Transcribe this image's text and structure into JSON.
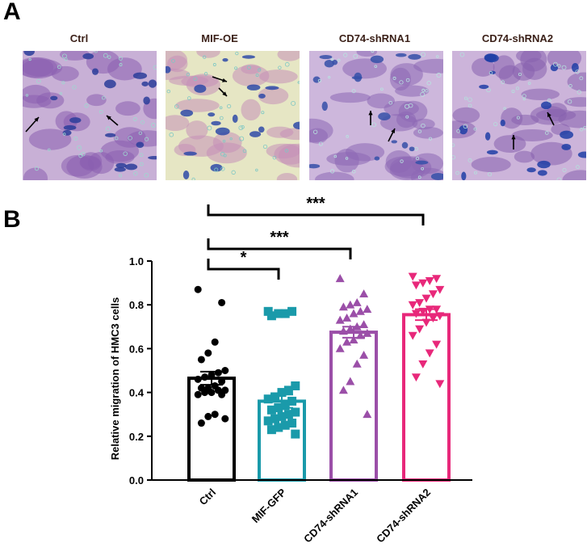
{
  "figure": {
    "panel_a_label": "A",
    "panel_b_label": "B",
    "images": [
      {
        "title": "Ctrl",
        "bg": "#c8b0d6",
        "cell": "#8a5fb0",
        "nucleus": "#2a3d9a",
        "speck": "#9ed8d0"
      },
      {
        "title": "MIF-OE",
        "bg": "#e6e6c4",
        "cell": "#c48fb8",
        "nucleus": "#2e4aa8",
        "speck": "#7ec8c4"
      },
      {
        "title": "CD74-shRNA1",
        "bg": "#cdb7dc",
        "cell": "#8c68b4",
        "nucleus": "#3550a8",
        "speck": "#b8e4e0"
      },
      {
        "title": "CD74-shRNA2",
        "bg": "#ccb4da",
        "cell": "#8660ae",
        "nucleus": "#1e3ea6",
        "speck": "#b4e0dc"
      }
    ]
  },
  "chart_data": {
    "type": "bar",
    "ylabel": "Relative migration of HMC3 cells",
    "ylim": [
      0.0,
      1.0
    ],
    "yticks": [
      0.0,
      0.2,
      0.4,
      0.6,
      0.8,
      1.0
    ],
    "categories": [
      "Ctrl",
      "MIF-GFP",
      "CD74-shRNA1",
      "CD74-shRNA2"
    ],
    "means": [
      0.465,
      0.36,
      0.675,
      0.755
    ],
    "sem": [
      0.03,
      0.03,
      0.025,
      0.025
    ],
    "colors": [
      "#000000",
      "#1a9aaa",
      "#9b4fa8",
      "#e8287a"
    ],
    "markers": [
      "circle",
      "square",
      "triangle",
      "triangle-down"
    ],
    "points": [
      [
        0.87,
        0.81,
        0.63,
        0.58,
        0.55,
        0.5,
        0.49,
        0.48,
        0.47,
        0.46,
        0.45,
        0.43,
        0.42,
        0.42,
        0.41,
        0.41,
        0.4,
        0.4,
        0.39,
        0.39,
        0.3,
        0.29,
        0.26,
        0.28
      ],
      [
        0.77,
        0.77,
        0.76,
        0.76,
        0.75,
        0.43,
        0.41,
        0.4,
        0.38,
        0.37,
        0.36,
        0.34,
        0.33,
        0.32,
        0.31,
        0.3,
        0.29,
        0.28,
        0.27,
        0.26,
        0.25,
        0.24,
        0.23,
        0.21
      ],
      [
        0.92,
        0.85,
        0.81,
        0.8,
        0.79,
        0.78,
        0.77,
        0.76,
        0.74,
        0.73,
        0.71,
        0.7,
        0.69,
        0.68,
        0.67,
        0.66,
        0.64,
        0.63,
        0.6,
        0.57,
        0.53,
        0.45,
        0.41,
        0.3
      ],
      [
        0.93,
        0.92,
        0.91,
        0.9,
        0.89,
        0.87,
        0.85,
        0.83,
        0.81,
        0.8,
        0.78,
        0.78,
        0.77,
        0.76,
        0.75,
        0.74,
        0.72,
        0.69,
        0.66,
        0.62,
        0.58,
        0.53,
        0.47,
        0.44
      ]
    ],
    "significance": [
      {
        "from": "Ctrl",
        "to": "MIF-GFP",
        "label": "*"
      },
      {
        "from": "Ctrl",
        "to": "CD74-shRNA1",
        "label": "***"
      },
      {
        "from": "Ctrl",
        "to": "CD74-shRNA2",
        "label": "***"
      }
    ]
  }
}
